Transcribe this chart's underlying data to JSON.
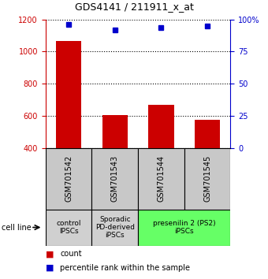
{
  "title": "GDS4141 / 211911_x_at",
  "samples": [
    "GSM701542",
    "GSM701543",
    "GSM701544",
    "GSM701545"
  ],
  "counts": [
    1065,
    605,
    670,
    575
  ],
  "percentiles": [
    96,
    92,
    94,
    95
  ],
  "ylim_left": [
    400,
    1200
  ],
  "ylim_right": [
    0,
    100
  ],
  "yticks_left": [
    400,
    600,
    800,
    1000,
    1200
  ],
  "yticks_right": [
    0,
    25,
    50,
    75,
    100
  ],
  "bar_color": "#cc0000",
  "dot_color": "#0000cc",
  "bar_bottom": 400,
  "groups": [
    {
      "label": "control\nIPSCs",
      "span": [
        0,
        1
      ],
      "color": "#d0d0d0"
    },
    {
      "label": "Sporadic\nPD-derived\niPSCs",
      "span": [
        1,
        2
      ],
      "color": "#d0d0d0"
    },
    {
      "label": "presenilin 2 (PS2)\niPSCs",
      "span": [
        2,
        4
      ],
      "color": "#66ff66"
    }
  ],
  "left_axis_color": "#cc0000",
  "right_axis_color": "#0000cc",
  "cell_line_label": "cell line",
  "legend_count_label": "count",
  "legend_pct_label": "percentile rank within the sample",
  "sample_box_color": "#c8c8c8",
  "title_fontsize": 9,
  "tick_fontsize": 7,
  "label_fontsize": 7,
  "legend_fontsize": 7
}
